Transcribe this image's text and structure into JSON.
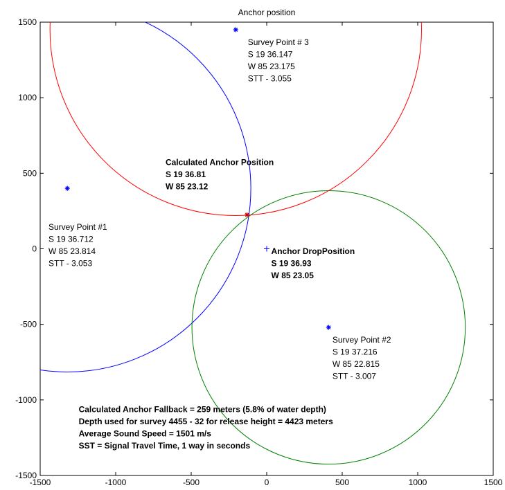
{
  "chart_data": {
    "type": "scatter",
    "title": "Anchor position",
    "xlabel": "",
    "ylabel": "",
    "xlim": [
      -1500,
      1500
    ],
    "ylim": [
      -1500,
      1500
    ],
    "xticks": [
      -1500,
      -1000,
      -500,
      0,
      500,
      1000,
      1500
    ],
    "yticks": [
      -1500,
      -1000,
      -500,
      0,
      500,
      1000,
      1500
    ],
    "xtick_labels": [
      "-1500",
      "-1000",
      "-500",
      "0",
      "500",
      "1000",
      "1500"
    ],
    "ytick_labels": [
      "-1500",
      "-1000",
      "-500",
      "0",
      "500",
      "1000",
      "1500"
    ],
    "grid": false,
    "colors": {
      "circle1": "#0000ff",
      "circle2": "#008000",
      "circle3": "#ff0000",
      "marker": "#0000ff",
      "solution": "#cc0000"
    },
    "circles": [
      {
        "id": "survey1",
        "cx": -1320,
        "cy": 400,
        "r": 1215,
        "color": "#0000ff"
      },
      {
        "id": "survey2",
        "cx": 410,
        "cy": -520,
        "r": 905,
        "color": "#008000"
      },
      {
        "id": "survey3",
        "cx": -205,
        "cy": 1450,
        "r": 1230,
        "color": "#ff0000"
      }
    ],
    "points": [
      {
        "id": "survey1",
        "x": -1320,
        "y": 400,
        "marker": "*"
      },
      {
        "id": "survey2",
        "x": 410,
        "y": -520,
        "marker": "*"
      },
      {
        "id": "survey3",
        "x": -205,
        "y": 1450,
        "marker": "*"
      },
      {
        "id": "drop",
        "x": 0,
        "y": 0,
        "marker": "+"
      },
      {
        "id": "calculated",
        "x": -130,
        "y": 225,
        "marker": "*"
      }
    ],
    "annotations": [
      {
        "id": "survey3",
        "x": -125,
        "y": 1350,
        "bold": false,
        "lines": [
          "Survey Point # 3",
          "S 19 36.147",
          "W 85 23.175",
          "STT - 3.055"
        ]
      },
      {
        "id": "calculated",
        "x": -670,
        "y": 555,
        "bold": true,
        "lines": [
          "Calculated Anchor Position",
          "S 19 36.81",
          "W 85 23.12"
        ]
      },
      {
        "id": "survey1",
        "x": -1445,
        "y": 125,
        "bold": false,
        "lines": [
          "Survey Point #1",
          "S 19 36.712",
          "W 85 23.814",
          "STT - 3.053"
        ]
      },
      {
        "id": "drop",
        "x": 30,
        "y": -35,
        "bold": true,
        "lines": [
          "Anchor DropPosition",
          "S 19 36.93",
          "W 85 23.05"
        ]
      },
      {
        "id": "survey2",
        "x": 435,
        "y": -620,
        "bold": false,
        "lines": [
          "Survey Point #2",
          "S 19 37.216",
          "W 85 22.815",
          "STT - 3.007"
        ]
      },
      {
        "id": "footer",
        "x": -1245,
        "y": -1080,
        "bold": true,
        "lines": [
          "Calculated Anchor Fallback = 259 meters (5.8% of  water depth)",
          "Depth used for survey 4455 - 32 for release height = 4423 meters",
          "Average Sound Speed = 1501 m/s",
          "SST = Signal Travel Time, 1 way in seconds"
        ]
      }
    ]
  }
}
